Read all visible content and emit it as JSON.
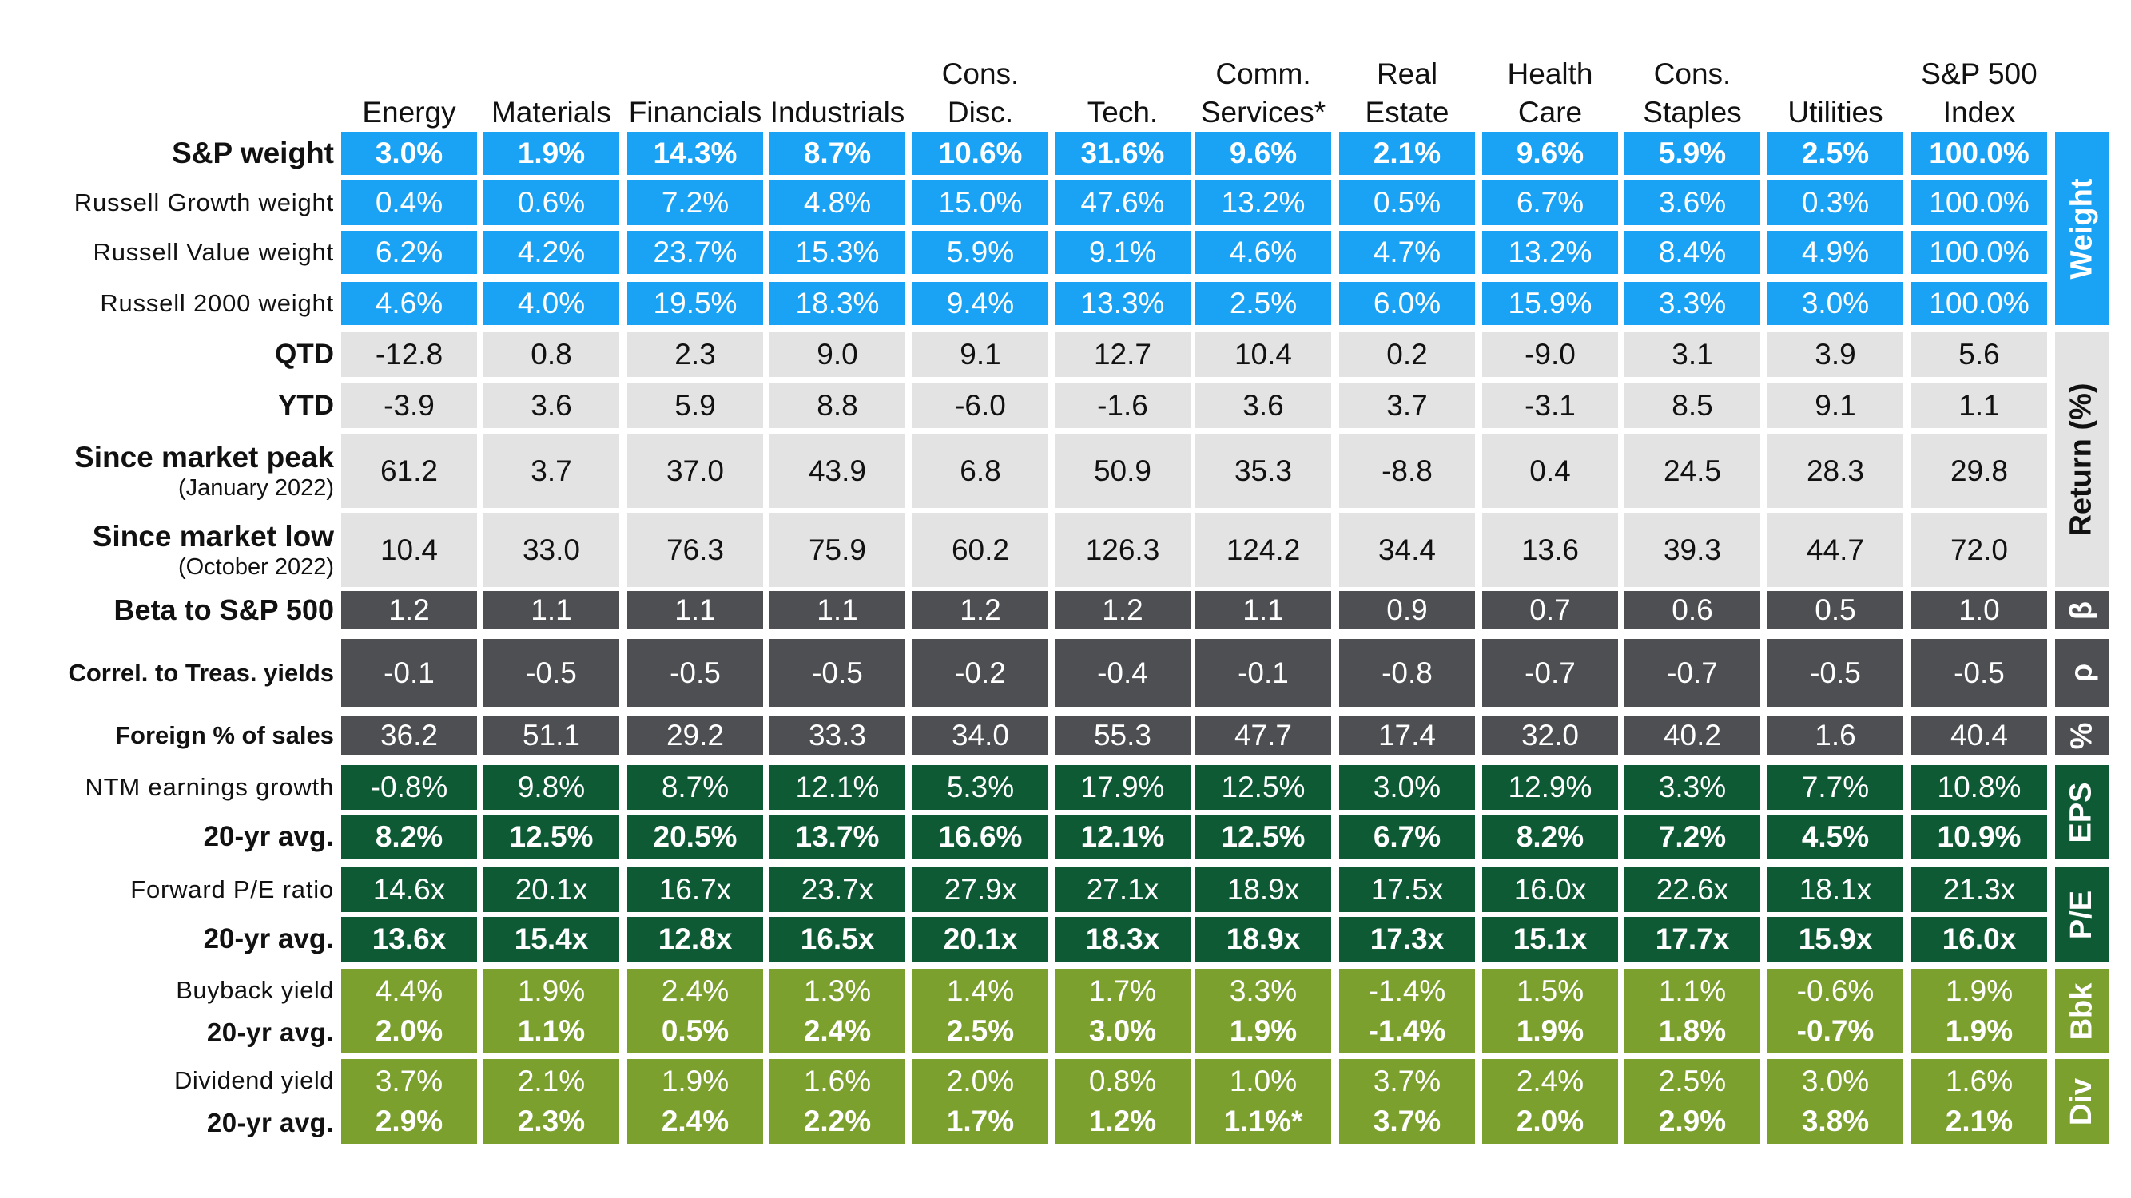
{
  "chart_data": {
    "type": "table",
    "columns": [
      "Energy",
      "Materials",
      "Financials",
      "Industrials",
      "Cons. Disc.",
      "Tech.",
      "Comm. Services*",
      "Real Estate",
      "Health Care",
      "Cons. Staples",
      "Utilities",
      "S&P 500 Index"
    ],
    "groups": [
      {
        "label": "Weight",
        "rows": [
          {
            "label": "S&P weight",
            "bold": true,
            "values": [
              "3.0%",
              "1.9%",
              "14.3%",
              "8.7%",
              "10.6%",
              "31.6%",
              "9.6%",
              "2.1%",
              "9.6%",
              "5.9%",
              "2.5%",
              "100.0%"
            ]
          },
          {
            "label": "Russell Growth weight",
            "values": [
              "0.4%",
              "0.6%",
              "7.2%",
              "4.8%",
              "15.0%",
              "47.6%",
              "13.2%",
              "0.5%",
              "6.7%",
              "3.6%",
              "0.3%",
              "100.0%"
            ]
          },
          {
            "label": "Russell Value weight",
            "values": [
              "6.2%",
              "4.2%",
              "23.7%",
              "15.3%",
              "5.9%",
              "9.1%",
              "4.6%",
              "4.7%",
              "13.2%",
              "8.4%",
              "4.9%",
              "100.0%"
            ]
          },
          {
            "label": "Russell 2000 weight",
            "values": [
              "4.6%",
              "4.0%",
              "19.5%",
              "18.3%",
              "9.4%",
              "13.3%",
              "2.5%",
              "6.0%",
              "15.9%",
              "3.3%",
              "3.0%",
              "100.0%"
            ]
          }
        ]
      },
      {
        "label": "Return (%)",
        "rows": [
          {
            "label": "QTD",
            "bold": true,
            "values": [
              "-12.8",
              "0.8",
              "2.3",
              "9.0",
              "9.1",
              "12.7",
              "10.4",
              "0.2",
              "-9.0",
              "3.1",
              "3.9",
              "5.6"
            ]
          },
          {
            "label": "YTD",
            "bold": true,
            "values": [
              "-3.9",
              "3.6",
              "5.9",
              "8.8",
              "-6.0",
              "-1.6",
              "3.6",
              "3.7",
              "-3.1",
              "8.5",
              "9.1",
              "1.1"
            ]
          },
          {
            "label": "Since market peak",
            "sublabel": "(January 2022)",
            "bold": true,
            "values": [
              "61.2",
              "3.7",
              "37.0",
              "43.9",
              "6.8",
              "50.9",
              "35.3",
              "-8.8",
              "0.4",
              "24.5",
              "28.3",
              "29.8"
            ]
          },
          {
            "label": "Since market low",
            "sublabel": "(October 2022)",
            "bold": true,
            "values": [
              "10.4",
              "33.0",
              "76.3",
              "75.9",
              "60.2",
              "126.3",
              "124.2",
              "34.4",
              "13.6",
              "39.3",
              "44.7",
              "72.0"
            ]
          }
        ]
      },
      {
        "label": "β",
        "rows": [
          {
            "label": "Beta to S&P 500",
            "bold": true,
            "values": [
              "1.2",
              "1.1",
              "1.1",
              "1.1",
              "1.2",
              "1.2",
              "1.1",
              "0.9",
              "0.7",
              "0.6",
              "0.5",
              "1.0"
            ]
          }
        ]
      },
      {
        "label": "ρ",
        "rows": [
          {
            "label": "Correl. to Treas. yields",
            "bold": true,
            "values": [
              "-0.1",
              "-0.5",
              "-0.5",
              "-0.5",
              "-0.2",
              "-0.4",
              "-0.1",
              "-0.8",
              "-0.7",
              "-0.7",
              "-0.5",
              "-0.5"
            ]
          }
        ]
      },
      {
        "label": "%",
        "rows": [
          {
            "label": "Foreign % of sales",
            "bold": true,
            "values": [
              "36.2",
              "51.1",
              "29.2",
              "33.3",
              "34.0",
              "55.3",
              "47.7",
              "17.4",
              "32.0",
              "40.2",
              "1.6",
              "40.4"
            ]
          }
        ]
      },
      {
        "label": "EPS",
        "rows": [
          {
            "label": "NTM earnings growth",
            "values": [
              "-0.8%",
              "9.8%",
              "8.7%",
              "12.1%",
              "5.3%",
              "17.9%",
              "12.5%",
              "3.0%",
              "12.9%",
              "3.3%",
              "7.7%",
              "10.8%"
            ]
          },
          {
            "label": "20-yr avg.",
            "bold": true,
            "values": [
              "8.2%",
              "12.5%",
              "20.5%",
              "13.7%",
              "16.6%",
              "12.1%",
              "12.5%",
              "6.7%",
              "8.2%",
              "7.2%",
              "4.5%",
              "10.9%"
            ]
          }
        ]
      },
      {
        "label": "P/E",
        "rows": [
          {
            "label": "Forward P/E ratio",
            "values": [
              "14.6x",
              "20.1x",
              "16.7x",
              "23.7x",
              "27.9x",
              "27.1x",
              "18.9x",
              "17.5x",
              "16.0x",
              "22.6x",
              "18.1x",
              "21.3x"
            ]
          },
          {
            "label": "20-yr avg.",
            "bold": true,
            "values": [
              "13.6x",
              "15.4x",
              "12.8x",
              "16.5x",
              "20.1x",
              "18.3x",
              "18.9x",
              "17.3x",
              "15.1x",
              "17.7x",
              "15.9x",
              "16.0x"
            ]
          }
        ]
      },
      {
        "label": "Bbk",
        "rows": [
          {
            "label": "Buyback yield",
            "values": [
              "4.4%",
              "1.9%",
              "2.4%",
              "1.3%",
              "1.4%",
              "1.7%",
              "3.3%",
              "-1.4%",
              "1.5%",
              "1.1%",
              "-0.6%",
              "1.9%"
            ]
          },
          {
            "label": "20-yr avg.",
            "bold": true,
            "values": [
              "2.0%",
              "1.1%",
              "0.5%",
              "2.4%",
              "2.5%",
              "3.0%",
              "1.9%",
              "-1.4%",
              "1.9%",
              "1.8%",
              "-0.7%",
              "1.9%"
            ]
          }
        ]
      },
      {
        "label": "Div",
        "rows": [
          {
            "label": "Dividend yield",
            "values": [
              "3.7%",
              "2.1%",
              "1.9%",
              "1.6%",
              "2.0%",
              "0.8%",
              "1.0%",
              "3.7%",
              "2.4%",
              "2.5%",
              "3.0%",
              "1.6%"
            ]
          },
          {
            "label": "20-yr avg.",
            "bold": true,
            "values": [
              "2.9%",
              "2.3%",
              "2.4%",
              "2.2%",
              "1.7%",
              "1.2%",
              "1.1%*",
              "3.7%",
              "2.0%",
              "2.9%",
              "3.8%",
              "2.1%"
            ]
          }
        ]
      }
    ]
  },
  "colors": {
    "weight_fill": "#1aa3f5",
    "return_fill": "#e3e3e3",
    "stats_fill": "#4d4f52",
    "eps_pe_fill": "#0d5a35",
    "bbk_div_fill": "#7ba02e",
    "white_text": "#ffffff",
    "dark_text": "#111111"
  }
}
